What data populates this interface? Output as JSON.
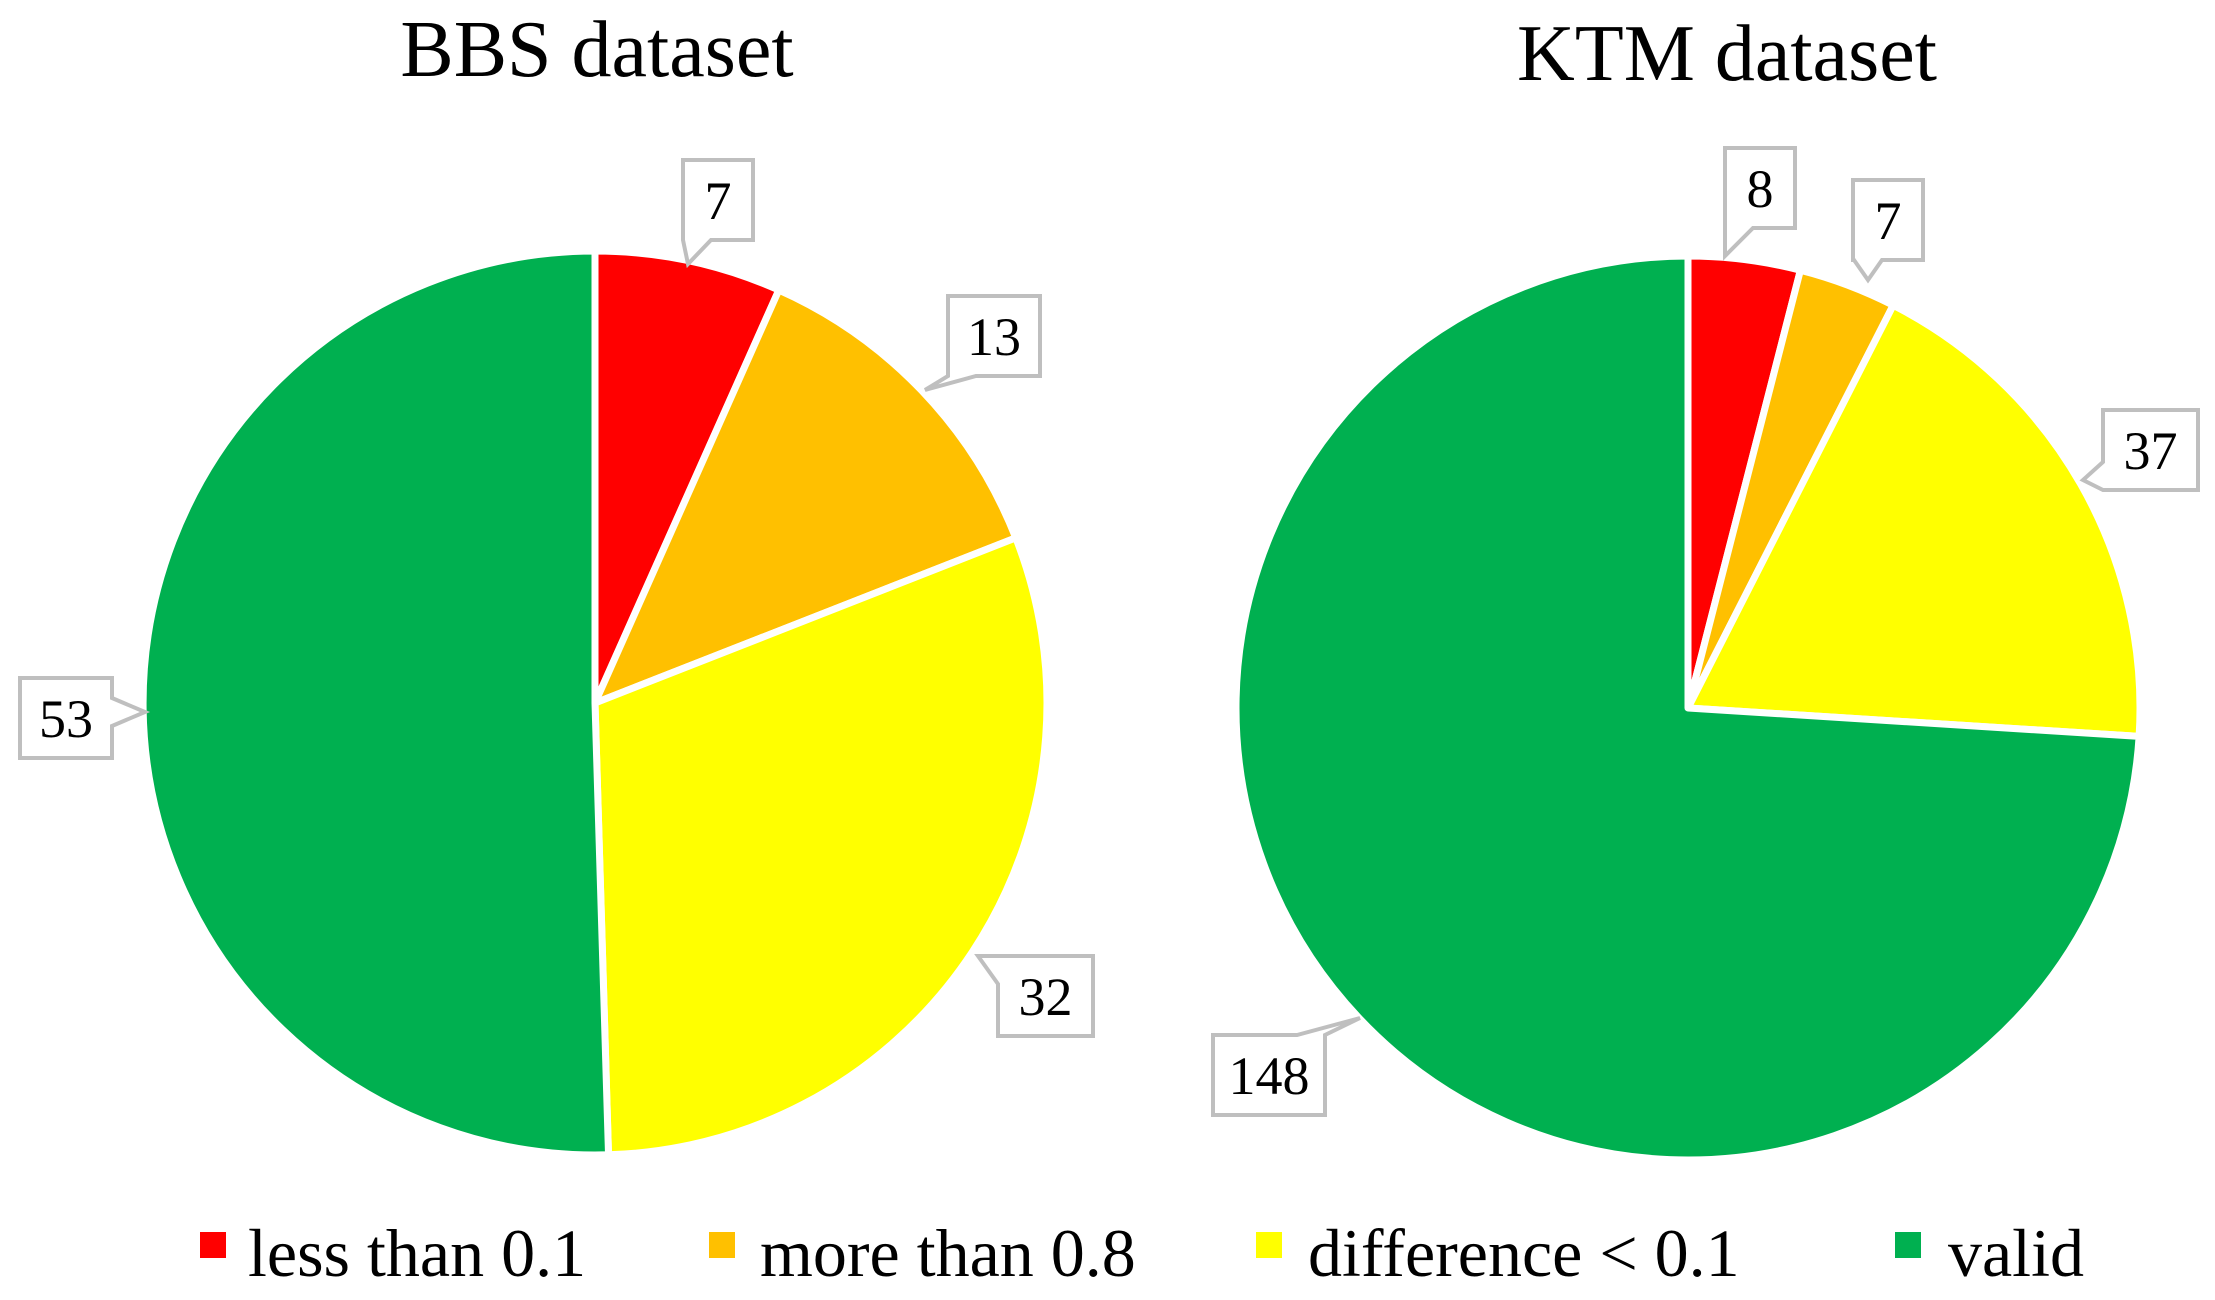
{
  "chart_data": [
    {
      "type": "pie",
      "title": "BBS dataset",
      "categories": [
        "less than 0.1",
        "more than 0.8",
        "difference < 0.1",
        "valid"
      ],
      "values": [
        7,
        13,
        32,
        53
      ],
      "start_angle_deg": 0,
      "direction": "clockwise"
    },
    {
      "type": "pie",
      "title": "KTM dataset",
      "categories": [
        "less than 0.1",
        "more than 0.8",
        "difference < 0.1",
        "valid"
      ],
      "values": [
        8,
        7,
        37,
        148
      ],
      "start_angle_deg": 0,
      "direction": "clockwise"
    }
  ],
  "legend": {
    "position": "bottom",
    "items": [
      {
        "label": "less than 0.1",
        "color": "#ff0000"
      },
      {
        "label": "more than 0.8",
        "color": "#ffc000"
      },
      {
        "label": "difference < 0.1",
        "color": "#ffff00"
      },
      {
        "label": "valid",
        "color": "#00b050"
      }
    ]
  },
  "colors": [
    "#ff0000",
    "#ffc000",
    "#ffff00",
    "#00b050"
  ]
}
